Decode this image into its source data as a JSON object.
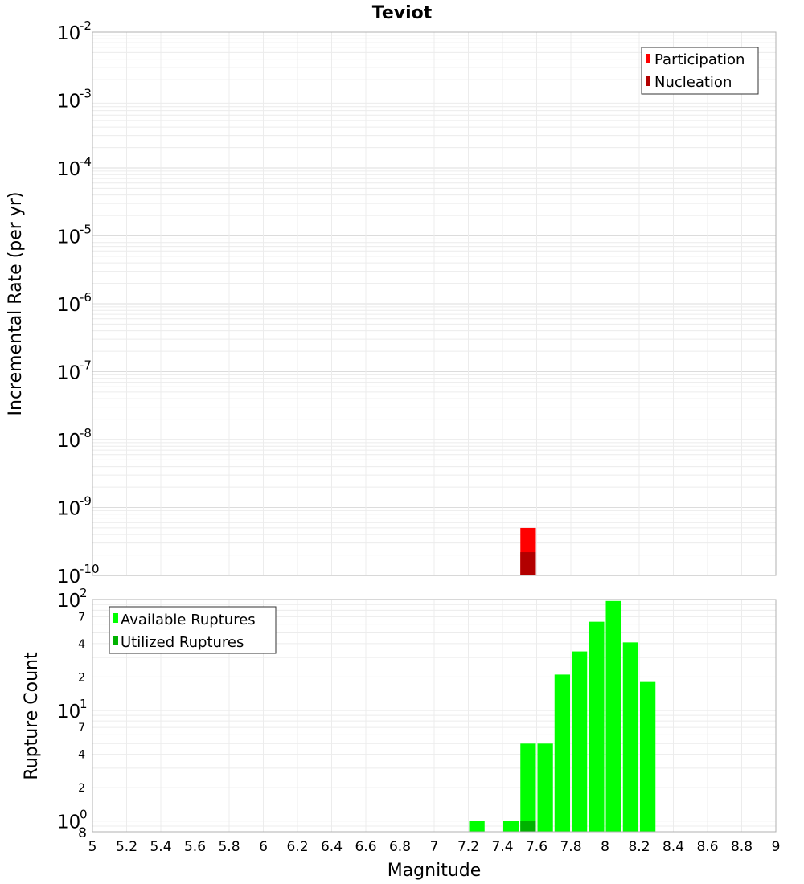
{
  "chart_data": [
    {
      "type": "bar",
      "title": "Teviot",
      "xlabel": "",
      "ylabel": "Incremental Rate (per yr)",
      "xlim": [
        5,
        9
      ],
      "ylim": [
        1e-10,
        0.01
      ],
      "y_scale": "log",
      "y_tick_labels": [
        {
          "base": "10",
          "exp": "-2"
        },
        {
          "base": "10",
          "exp": "-3"
        },
        {
          "base": "10",
          "exp": "-4"
        },
        {
          "base": "10",
          "exp": "-5"
        },
        {
          "base": "10",
          "exp": "-6"
        },
        {
          "base": "10",
          "exp": "-7"
        },
        {
          "base": "10",
          "exp": "-8"
        },
        {
          "base": "10",
          "exp": "-9"
        },
        {
          "base": "10",
          "exp": "-10"
        }
      ],
      "legend_position": "top-right",
      "bin_width": 0.1,
      "series": [
        {
          "name": "Participation",
          "color": "#ff0000",
          "points": [
            {
              "x": 7.55,
              "y": 5e-10
            }
          ]
        },
        {
          "name": "Nucleation",
          "color": "#b20000",
          "points": [
            {
              "x": 7.55,
              "y": 2.2e-10
            }
          ]
        }
      ],
      "grid": true
    },
    {
      "type": "bar",
      "title": "",
      "xlabel": "Magnitude",
      "ylabel": "Rupture Count",
      "xlim": [
        5,
        9
      ],
      "ylim": [
        0.8,
        100
      ],
      "y_scale": "log",
      "y_tick_labels": [
        {
          "base": "10",
          "exp": "2"
        },
        {
          "base": "",
          "exp": "",
          "minor": "7"
        },
        {
          "base": "",
          "exp": "",
          "minor": "4"
        },
        {
          "base": "",
          "exp": "",
          "minor": "2"
        },
        {
          "base": "10",
          "exp": "1"
        },
        {
          "base": "",
          "exp": "",
          "minor": "7"
        },
        {
          "base": "",
          "exp": "",
          "minor": "4"
        },
        {
          "base": "",
          "exp": "",
          "minor": "2"
        },
        {
          "base": "10",
          "exp": "0"
        },
        {
          "base": "",
          "exp": "",
          "minor": "8"
        }
      ],
      "x_tick_labels": [
        "5",
        "5.2",
        "5.4",
        "5.6",
        "5.8",
        "6",
        "6.2",
        "6.4",
        "6.6",
        "6.8",
        "7",
        "7.2",
        "7.4",
        "7.6",
        "7.8",
        "8",
        "8.2",
        "8.4",
        "8.6",
        "8.8",
        "9"
      ],
      "legend_position": "top-left",
      "bin_width": 0.1,
      "series": [
        {
          "name": "Available Ruptures",
          "color": "#00ff00",
          "points": [
            {
              "x": 7.25,
              "y": 1
            },
            {
              "x": 7.45,
              "y": 1
            },
            {
              "x": 7.55,
              "y": 5
            },
            {
              "x": 7.65,
              "y": 5
            },
            {
              "x": 7.75,
              "y": 21
            },
            {
              "x": 7.85,
              "y": 34
            },
            {
              "x": 7.95,
              "y": 63
            },
            {
              "x": 8.05,
              "y": 97
            },
            {
              "x": 8.15,
              "y": 41
            },
            {
              "x": 8.25,
              "y": 18
            }
          ]
        },
        {
          "name": "Utilized Ruptures",
          "color": "#00b200",
          "points": [
            {
              "x": 7.55,
              "y": 1
            }
          ]
        }
      ],
      "grid": true
    }
  ]
}
